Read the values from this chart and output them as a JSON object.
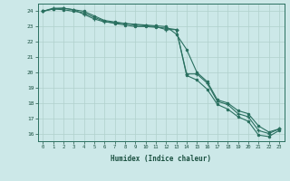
{
  "xlabel": "Humidex (Indice chaleur)",
  "x_values": [
    0,
    1,
    2,
    3,
    4,
    5,
    6,
    7,
    8,
    9,
    10,
    11,
    12,
    13,
    14,
    15,
    16,
    17,
    18,
    19,
    20,
    21,
    22,
    23
  ],
  "line1_y": [
    24.0,
    24.2,
    24.2,
    24.1,
    23.8,
    23.5,
    23.3,
    23.25,
    23.2,
    23.1,
    23.05,
    23.0,
    22.8,
    22.8,
    19.9,
    19.9,
    19.3,
    18.1,
    17.9,
    17.3,
    17.1,
    16.2,
    16.0,
    16.3
  ],
  "line2_y": [
    24.0,
    24.15,
    24.2,
    24.1,
    24.0,
    23.7,
    23.4,
    23.3,
    23.2,
    23.15,
    23.1,
    23.05,
    23.0,
    22.5,
    21.5,
    20.0,
    19.4,
    18.2,
    18.0,
    17.5,
    17.3,
    16.5,
    16.1,
    16.3
  ],
  "line3_y": [
    24.0,
    24.15,
    24.1,
    24.0,
    23.9,
    23.6,
    23.35,
    23.2,
    23.1,
    23.0,
    23.0,
    22.95,
    22.9,
    22.8,
    19.8,
    19.5,
    18.9,
    17.9,
    17.6,
    17.1,
    16.8,
    15.9,
    15.8,
    16.2
  ],
  "bg_color": "#cce8e8",
  "grid_color": "#b0d0cc",
  "line_color": "#2a7060",
  "ylim": [
    15.5,
    24.5
  ],
  "xlim": [
    -0.5,
    23.5
  ],
  "yticks": [
    16,
    17,
    18,
    19,
    20,
    21,
    22,
    23,
    24
  ],
  "xticks": [
    0,
    1,
    2,
    3,
    4,
    5,
    6,
    7,
    8,
    9,
    10,
    11,
    12,
    13,
    14,
    15,
    16,
    17,
    18,
    19,
    20,
    21,
    22,
    23
  ]
}
